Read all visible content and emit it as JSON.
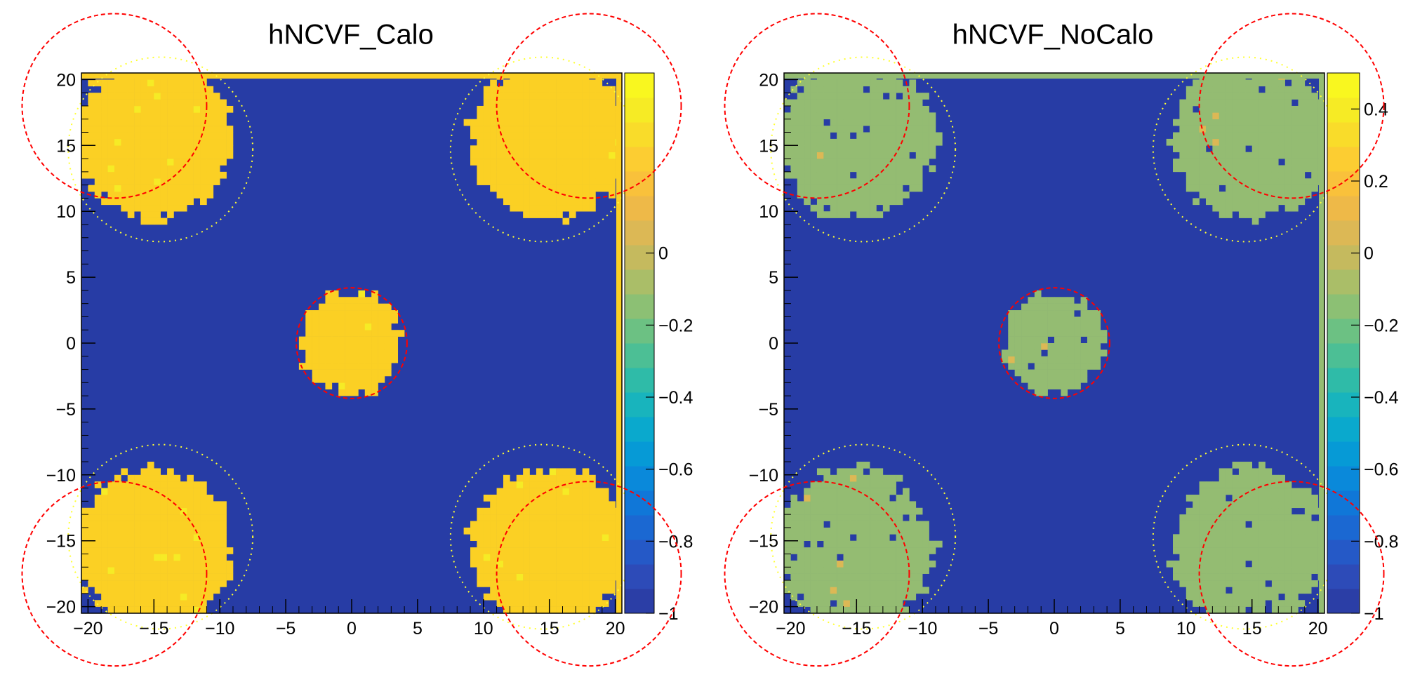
{
  "chart_data": [
    {
      "type": "heatmap",
      "title": "hNCVF_Calo",
      "xlim": [
        -20.5,
        20.5
      ],
      "ylim": [
        -20.5,
        20.5
      ],
      "x_ticks": [
        "−20",
        "−15",
        "−10",
        "−5",
        "0",
        "5",
        "10",
        "15",
        "20"
      ],
      "y_ticks": [
        "20",
        "15",
        "10",
        "5",
        "0",
        "−5",
        "−10",
        "−15",
        "−20"
      ],
      "zlim": [
        -1,
        0.5
      ],
      "colorbar_labels": [
        "0",
        "−0.2",
        "−0.4",
        "−0.6",
        "−0.8",
        "−1"
      ],
      "background_value": -1,
      "spot_value": 0.4,
      "spots": [
        {
          "x": -15,
          "y": 15.5,
          "r": 6
        },
        {
          "x": 15,
          "y": 15.5,
          "r": 6
        },
        {
          "x": 0,
          "y": 0,
          "r": 3.8
        },
        {
          "x": -15,
          "y": -15.5,
          "r": 6
        },
        {
          "x": 15,
          "y": -15.5,
          "r": 6
        }
      ],
      "yellow_circles": [
        {
          "x": -14.5,
          "y": 14.7,
          "r": 7
        },
        {
          "x": 14.5,
          "y": 14.7,
          "r": 7
        },
        {
          "x": -14.5,
          "y": -14.7,
          "r": 7
        },
        {
          "x": 14.5,
          "y": -14.7,
          "r": 7
        }
      ],
      "red_circles": [
        {
          "x": -18,
          "y": 18,
          "r": 7
        },
        {
          "x": 18,
          "y": 18,
          "r": 7
        },
        {
          "x": 0,
          "y": 0,
          "r": 4.2
        },
        {
          "x": -18,
          "y": -17.5,
          "r": 7
        },
        {
          "x": 18,
          "y": -17.5,
          "r": 7
        }
      ]
    },
    {
      "type": "heatmap",
      "title": "hNCVF_NoCalo",
      "xlim": [
        -20.5,
        20.5
      ],
      "ylim": [
        -20.5,
        20.5
      ],
      "x_ticks": [
        "−20",
        "−15",
        "−10",
        "−5",
        "0",
        "5",
        "10",
        "15",
        "20"
      ],
      "y_ticks": [
        "20",
        "15",
        "10",
        "5",
        "0",
        "−5",
        "−10",
        "−15",
        "−20"
      ],
      "zlim": [
        -1,
        0.5
      ],
      "colorbar_labels": [
        "0.4",
        "0.2",
        "0",
        "−0.2",
        "−0.4",
        "−0.6",
        "−0.8",
        "−1"
      ],
      "background_value": -1,
      "spot_value": 0.05,
      "spots": [
        {
          "x": -15,
          "y": 15.5,
          "r": 6
        },
        {
          "x": 15,
          "y": 15.5,
          "r": 6
        },
        {
          "x": 0,
          "y": 0,
          "r": 3.8
        },
        {
          "x": -15,
          "y": -15.5,
          "r": 6
        },
        {
          "x": 15,
          "y": -15.5,
          "r": 6
        }
      ],
      "yellow_circles": [
        {
          "x": -14.5,
          "y": 14.7,
          "r": 7
        },
        {
          "x": 14.5,
          "y": 14.7,
          "r": 7
        },
        {
          "x": -14.5,
          "y": -14.7,
          "r": 7
        },
        {
          "x": 14.5,
          "y": -14.7,
          "r": 7
        }
      ],
      "red_circles": [
        {
          "x": -18,
          "y": 18,
          "r": 7
        },
        {
          "x": 18,
          "y": 18,
          "r": 7
        },
        {
          "x": 0,
          "y": 0,
          "r": 4.2
        },
        {
          "x": -18,
          "y": -17.5,
          "r": 7
        },
        {
          "x": 18,
          "y": -17.5,
          "r": 7
        }
      ]
    }
  ],
  "colors": {
    "background_bin": "#273ca5",
    "calo_spot": "#fbd024",
    "nocalo_spot": "#94bc72",
    "red_circle": "#ff0000",
    "yellow_circle": "#ffff33",
    "palette": [
      "#2b3ea6",
      "#2d4bb8",
      "#2559c7",
      "#1b68d2",
      "#1077d8",
      "#0a89da",
      "#069ad6",
      "#0aa9cd",
      "#18b4bd",
      "#2fbba8",
      "#4cbf95",
      "#6cc183",
      "#8cc074",
      "#aabe68",
      "#c5ba5e",
      "#dcb855",
      "#eeb948",
      "#f9c13b",
      "#fccd32",
      "#f9dc2a",
      "#f6eb25",
      "#f9f71f"
    ]
  }
}
